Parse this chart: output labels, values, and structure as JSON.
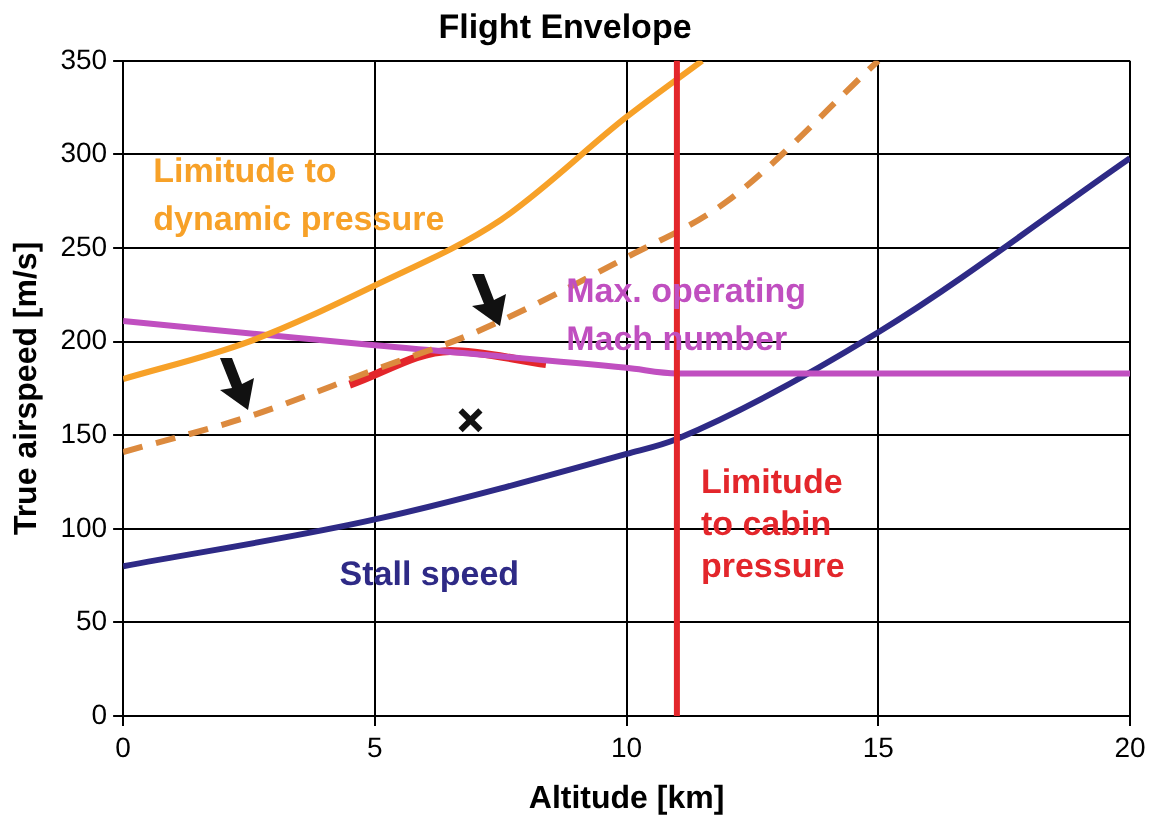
{
  "chart_data": {
    "type": "line",
    "title": "Flight Envelope",
    "xlabel": "Altitude [km]",
    "ylabel": "True airspeed [m/s]",
    "xlim": [
      0,
      20
    ],
    "xticks": [
      0,
      5,
      10,
      15,
      20
    ],
    "ylim": [
      0,
      350
    ],
    "yticks": [
      0,
      50,
      100,
      150,
      200,
      250,
      300,
      350
    ],
    "grid": true,
    "legend": false,
    "marker": "none",
    "line_style": "solid",
    "series": [
      {
        "name": "Limitude to\ndynamic pressure",
        "color": "#f7a128",
        "x": [
          0,
          2.5,
          5,
          7.5,
          10,
          11.5
        ],
        "values": [
          180,
          200,
          230,
          265,
          320,
          350
        ]
      },
      {
        "color": "#dc8a3e",
        "line_style": "dashed",
        "x": [
          0,
          2.5,
          5,
          7,
          10,
          12,
          15
        ],
        "values": [
          141,
          160,
          185,
          205,
          245,
          275,
          350
        ]
      },
      {
        "name": "Max. operating\nMach number",
        "color": "#c04fc0",
        "x": [
          0,
          5,
          10,
          11,
          20
        ],
        "values": [
          211,
          198,
          186,
          183,
          183
        ]
      },
      {
        "name": "Stall speed",
        "color": "#2e2a86",
        "x": [
          0,
          5,
          10,
          11,
          15,
          20
        ],
        "values": [
          80,
          105,
          140,
          148,
          205,
          298
        ]
      },
      {
        "color": "#e3262b",
        "x": [
          4.5,
          6.5,
          8.4
        ],
        "values": [
          177,
          195,
          188
        ]
      },
      {
        "type": "scatter",
        "marker": "cross",
        "color": "#111111",
        "x": [
          6.9
        ],
        "values": [
          158
        ]
      }
    ],
    "ref_lines": [
      {
        "axis": "x",
        "value": 11,
        "label": "Limitude\nto cabin\npressure",
        "color": "#e3262b"
      }
    ]
  }
}
